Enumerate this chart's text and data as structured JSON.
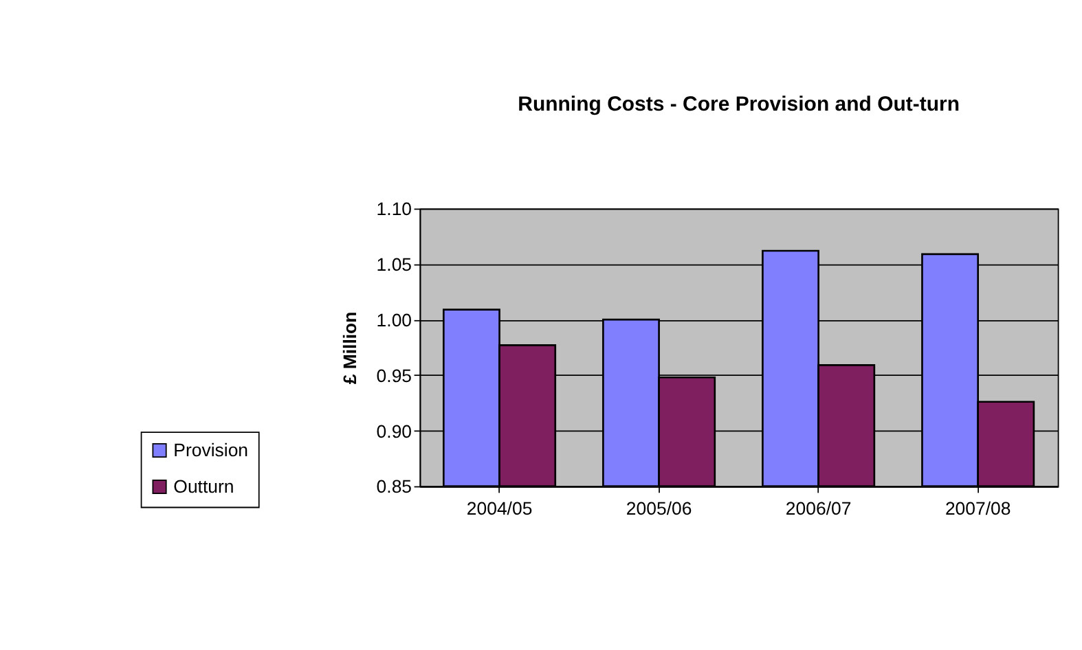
{
  "chart_data": {
    "type": "bar",
    "title": "Running Costs - Core Provision and Out-turn",
    "ylabel": "£ Million",
    "categories": [
      "2004/05",
      "2005/06",
      "2006/07",
      "2007/08"
    ],
    "series": [
      {
        "name": "Provision",
        "color": "#8080ff",
        "values": [
          1.009,
          1.0,
          1.062,
          1.059
        ]
      },
      {
        "name": "Outturn",
        "color": "#7f1f5f",
        "values": [
          0.977,
          0.948,
          0.959,
          0.926
        ]
      }
    ],
    "ylim": [
      0.85,
      1.1
    ],
    "yticks": [
      0.85,
      {
        "value": 0.9,
        "label": "0.90"
      },
      0.95,
      {
        "value": 1.0,
        "label": "1.00"
      },
      1.05,
      {
        "value": 1.1,
        "label": "1.10"
      }
    ],
    "grid": "y",
    "legend": "bottom left"
  }
}
